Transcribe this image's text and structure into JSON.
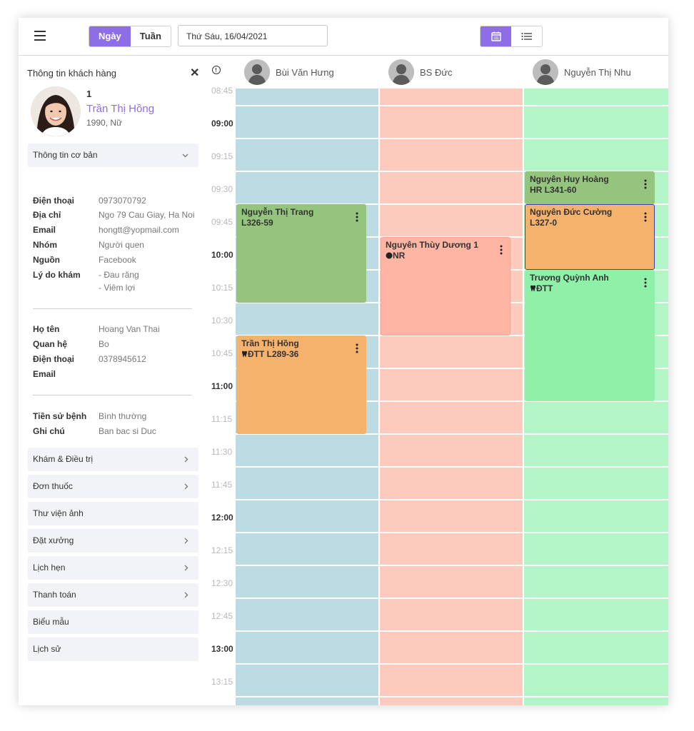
{
  "header": {
    "view_day": "Ngày",
    "view_week": "Tuần",
    "date_value": "Thứ Sáu, 16/04/2021"
  },
  "customer": {
    "panel_title": "Thông tin khách hàng",
    "number": "1",
    "name": "Trần Thị Hồng",
    "sub": "1990, Nữ"
  },
  "basic_info": {
    "section_label": "Thông tin cơ bản",
    "rows": [
      {
        "label": "Điện thoại",
        "value": "0973070792"
      },
      {
        "label": "Địa chỉ",
        "value": "Ngo 79 Cau Giay, Ha Noi"
      },
      {
        "label": "Email",
        "value": "hongtt@yopmail.com"
      },
      {
        "label": "Nhóm",
        "value": "Người quen"
      },
      {
        "label": "Nguồn",
        "value": "Facebook"
      },
      {
        "label": "Lý do khám",
        "value": "- Đau răng"
      },
      {
        "label": "",
        "value": "- Viêm lợi"
      }
    ]
  },
  "relative": {
    "rows": [
      {
        "label": "Họ tên",
        "value": "Hoang Van Thai"
      },
      {
        "label": "Quan hệ",
        "value": "Bo"
      },
      {
        "label": "Điện thoại",
        "value": "0378945612"
      },
      {
        "label": "Email",
        "value": ""
      }
    ]
  },
  "history": {
    "rows": [
      {
        "label": "Tiền sử bệnh",
        "value": "Bình thường"
      },
      {
        "label": "Ghi chú",
        "value": "Ban bac si Duc"
      }
    ]
  },
  "sections": [
    {
      "label": "Khám & Điều trị",
      "has_arrow": true
    },
    {
      "label": "Đơn thuốc",
      "has_arrow": true
    },
    {
      "label": "Thư viện ảnh",
      "has_arrow": false
    },
    {
      "label": "Đặt xưởng",
      "has_arrow": true
    },
    {
      "label": "Lịch hẹn",
      "has_arrow": true
    },
    {
      "label": "Thanh toán",
      "has_arrow": true
    },
    {
      "label": "Biểu mẫu",
      "has_arrow": false
    },
    {
      "label": "Lịch sử",
      "has_arrow": false
    }
  ],
  "doctors": [
    {
      "name": "Bùi Văn Hưng",
      "color": "#bcdbe3"
    },
    {
      "name": "BS Đức",
      "color": "#fdcbbd"
    },
    {
      "name": "Nguyễn Thị Nhu",
      "color": "#b3f5c6"
    }
  ],
  "times": [
    {
      "label": "08:45",
      "hour": false
    },
    {
      "label": "09:00",
      "hour": true
    },
    {
      "label": "09:15",
      "hour": false
    },
    {
      "label": "09:30",
      "hour": false
    },
    {
      "label": "09:45",
      "hour": false
    },
    {
      "label": "10:00",
      "hour": true
    },
    {
      "label": "10:15",
      "hour": false
    },
    {
      "label": "10:30",
      "hour": false
    },
    {
      "label": "10:45",
      "hour": false
    },
    {
      "label": "11:00",
      "hour": true
    },
    {
      "label": "11:15",
      "hour": false
    },
    {
      "label": "11:30",
      "hour": false
    },
    {
      "label": "11:45",
      "hour": false
    },
    {
      "label": "12:00",
      "hour": true
    },
    {
      "label": "12:15",
      "hour": false
    },
    {
      "label": "12:30",
      "hour": false
    },
    {
      "label": "12:45",
      "hour": false
    },
    {
      "label": "13:00",
      "hour": true
    },
    {
      "label": "13:15",
      "hour": false
    }
  ],
  "appointments": [
    {
      "doctor": 0,
      "start": "09:30",
      "end": "10:15",
      "name": "Nguyễn Thị Trang",
      "code": "L326-59",
      "icon": "",
      "color": "#94c47e",
      "border": "#94c47e"
    },
    {
      "doctor": 0,
      "start": "10:30",
      "end": "11:15",
      "name": "Trần Thị Hồng",
      "code": "ĐTT   L289-36",
      "icon": "tooth-icon",
      "color": "#f4b26d",
      "border": "#f4b26d"
    },
    {
      "doctor": 1,
      "start": "09:45",
      "end": "10:30",
      "name": "Nguyên Thùy Dương 1",
      "code": "NR",
      "icon": "dot-icon",
      "color": "#feb5a3",
      "border": "#f2a797"
    },
    {
      "doctor": 2,
      "start": "09:15",
      "end": "09:30",
      "name": "Nguyên Huy Hoàng",
      "code": "HR   L341-60",
      "icon": "",
      "color": "#94c47e",
      "border": "#94c47e"
    },
    {
      "doctor": 2,
      "start": "09:30",
      "end": "10:00",
      "name": "Nguyên Đức Cường",
      "code": "L327-0",
      "icon": "",
      "color": "#f4b26d",
      "border": "#3d3fb5"
    },
    {
      "doctor": 2,
      "start": "10:00",
      "end": "11:00",
      "name": "Trương Quỳnh Anh",
      "code": "ĐTT",
      "icon": "tooth-icon",
      "color": "#8ff0a8",
      "border": "#8ff0a8"
    }
  ]
}
